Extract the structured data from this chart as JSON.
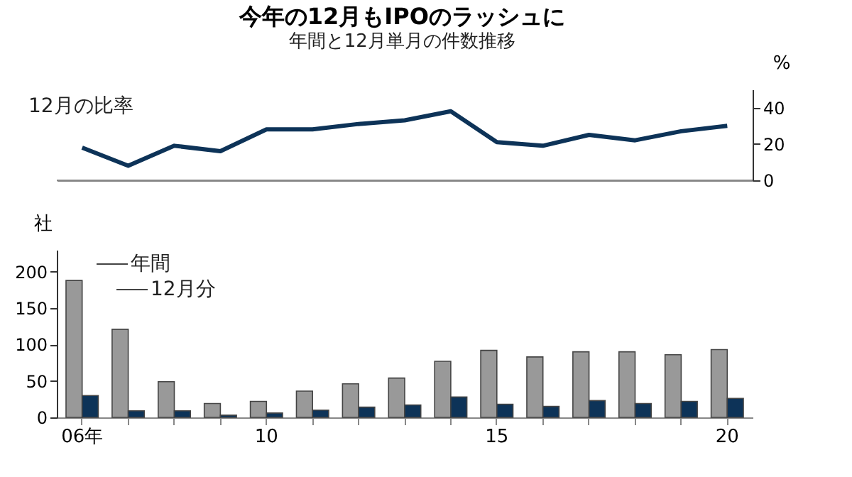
{
  "chart_data": [
    {
      "type": "line",
      "title": "今年の12月もIPOのラッシュに",
      "subtitle": "年間と12月単月の件数推移",
      "ylabel": "%",
      "categories": [
        null,
        null,
        null,
        null,
        null,
        null,
        null,
        null,
        null,
        null,
        null,
        null,
        null,
        null,
        null
      ],
      "series": [
        {
          "name": "12月の比率",
          "color": "#0d3358",
          "values": [
            18,
            8,
            19,
            16,
            28,
            28,
            31,
            33,
            38,
            21,
            19,
            25,
            22,
            27,
            30
          ]
        }
      ],
      "ylim": [
        0,
        50
      ],
      "yticks": [
        0,
        20,
        40
      ],
      "grid": false,
      "tick_labels": "y"
    },
    {
      "type": "bar",
      "ylabel": "社",
      "categories": [
        "06年",
        null,
        null,
        null,
        "10",
        null,
        null,
        null,
        null,
        "15",
        null,
        null,
        null,
        null,
        "20"
      ],
      "series": [
        {
          "name": "年間",
          "color": "#999999",
          "values": [
            188,
            121,
            49,
            19,
            22,
            36,
            46,
            54,
            77,
            92,
            83,
            90,
            90,
            86,
            93
          ]
        },
        {
          "name": "12月分",
          "color": "#0d3358",
          "values": [
            30,
            9,
            9,
            3,
            6,
            10,
            14,
            17,
            28,
            18,
            15,
            23,
            19,
            22,
            26
          ]
        }
      ],
      "ylim": [
        0,
        230
      ],
      "yticks": [
        0,
        50,
        100,
        150,
        200
      ],
      "grid": false,
      "legend": "top left"
    }
  ]
}
